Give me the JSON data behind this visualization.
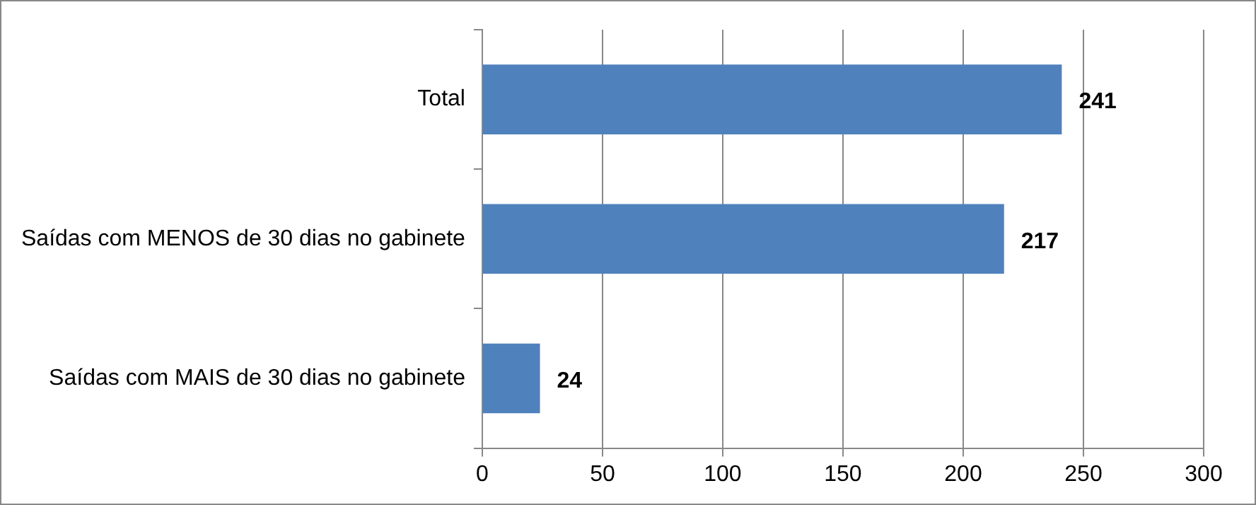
{
  "chart_data": {
    "type": "bar",
    "orientation": "horizontal",
    "categories": [
      "Total",
      "Saídas com MENOS de 30 dias no gabinete",
      "Saídas com MAIS de 30 dias no gabinete"
    ],
    "values": [
      241,
      217,
      24
    ],
    "color": "#4f81bd",
    "xlim": [
      0,
      300
    ],
    "xticks": [
      0,
      50,
      100,
      150,
      200,
      250,
      300
    ],
    "grid": "x",
    "data_labels": true,
    "legend": false
  }
}
